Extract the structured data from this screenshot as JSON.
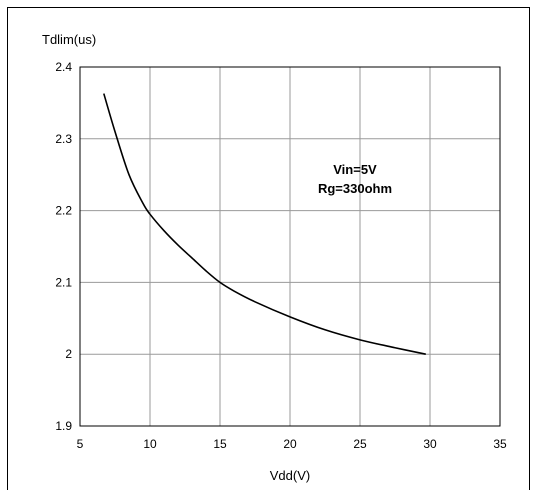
{
  "chart_data": {
    "type": "line",
    "ylabel": "Tdlim(us)",
    "xlabel": "Vdd(V)",
    "xlim": [
      5,
      35
    ],
    "ylim": [
      1.9,
      2.4
    ],
    "x_ticks": [
      "5",
      "10",
      "15",
      "20",
      "25",
      "30",
      "35"
    ],
    "y_ticks": [
      "1.9",
      "2",
      "2.1",
      "2.2",
      "2.3",
      "2.4"
    ],
    "grid": true,
    "annotations": [
      "Vin=5V",
      "Rg=330ohm"
    ],
    "series": [
      {
        "x": [
          6.7,
          7.5,
          8.5,
          9.5,
          10,
          11,
          12,
          13,
          14,
          15,
          16,
          17.5,
          20,
          22.5,
          25,
          27.5,
          29.7
        ],
        "y": [
          2.363,
          2.31,
          2.25,
          2.21,
          2.195,
          2.172,
          2.152,
          2.134,
          2.116,
          2.1,
          2.088,
          2.073,
          2.052,
          2.034,
          2.02,
          2.009,
          2.0
        ]
      }
    ]
  }
}
